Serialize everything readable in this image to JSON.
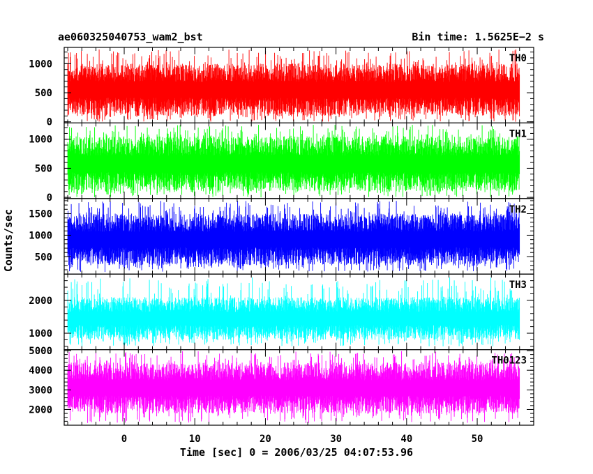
{
  "chart_data": {
    "type": "line",
    "title": "ae060325040753_wam2_bst",
    "bin_time_label": "Bin time: 1.5625E−2 s",
    "xlabel": "Time [sec] 0 = 2006/03/25 04:07:53.96",
    "ylabel": "Counts/sec",
    "xlim": [
      -8.5,
      58
    ],
    "x_ticks": [
      0,
      10,
      20,
      30,
      40,
      50
    ],
    "x_tick_labels": [
      "0",
      "10",
      "20",
      "30",
      "40",
      "50"
    ],
    "data_x_range": [
      -8,
      56
    ],
    "grid": false,
    "panels": [
      {
        "name": "TH0",
        "color": "#ff0000",
        "ylim": [
          -20,
          1280
        ],
        "y_ticks": [
          0,
          500,
          1000
        ],
        "y_tick_labels": [
          "0",
          "500",
          "1000"
        ],
        "typical_range": [
          100,
          1000
        ],
        "extreme_range": [
          0,
          1250
        ]
      },
      {
        "name": "TH1",
        "color": "#00ff00",
        "ylim": [
          -20,
          1280
        ],
        "y_ticks": [
          0,
          500,
          1000
        ],
        "y_tick_labels": [
          "0",
          "500",
          "1000"
        ],
        "typical_range": [
          100,
          1050
        ],
        "extreme_range": [
          0,
          1250
        ]
      },
      {
        "name": "TH2",
        "color": "#0000ff",
        "ylim": [
          100,
          1850
        ],
        "y_ticks": [
          500,
          1000,
          1500
        ],
        "y_tick_labels": [
          "500",
          "1000",
          "1500"
        ],
        "typical_range": [
          300,
          1500
        ],
        "extreme_range": [
          150,
          1800
        ]
      },
      {
        "name": "TH3",
        "color": "#00ffff",
        "ylim": [
          500,
          2800
        ],
        "y_ticks": [
          1000,
          2000
        ],
        "y_tick_labels": [
          "1000",
          "2000"
        ],
        "typical_range": [
          800,
          2100
        ],
        "extreme_range": [
          600,
          2700
        ]
      },
      {
        "name": "TH0123",
        "color": "#ff00ff",
        "ylim": [
          1200,
          5050
        ],
        "y_ticks": [
          2000,
          3000,
          4000,
          5000
        ],
        "y_tick_labels": [
          "2000",
          "3000",
          "4000",
          "5000"
        ],
        "typical_range": [
          1800,
          4400
        ],
        "extreme_range": [
          1300,
          5000
        ]
      }
    ]
  }
}
